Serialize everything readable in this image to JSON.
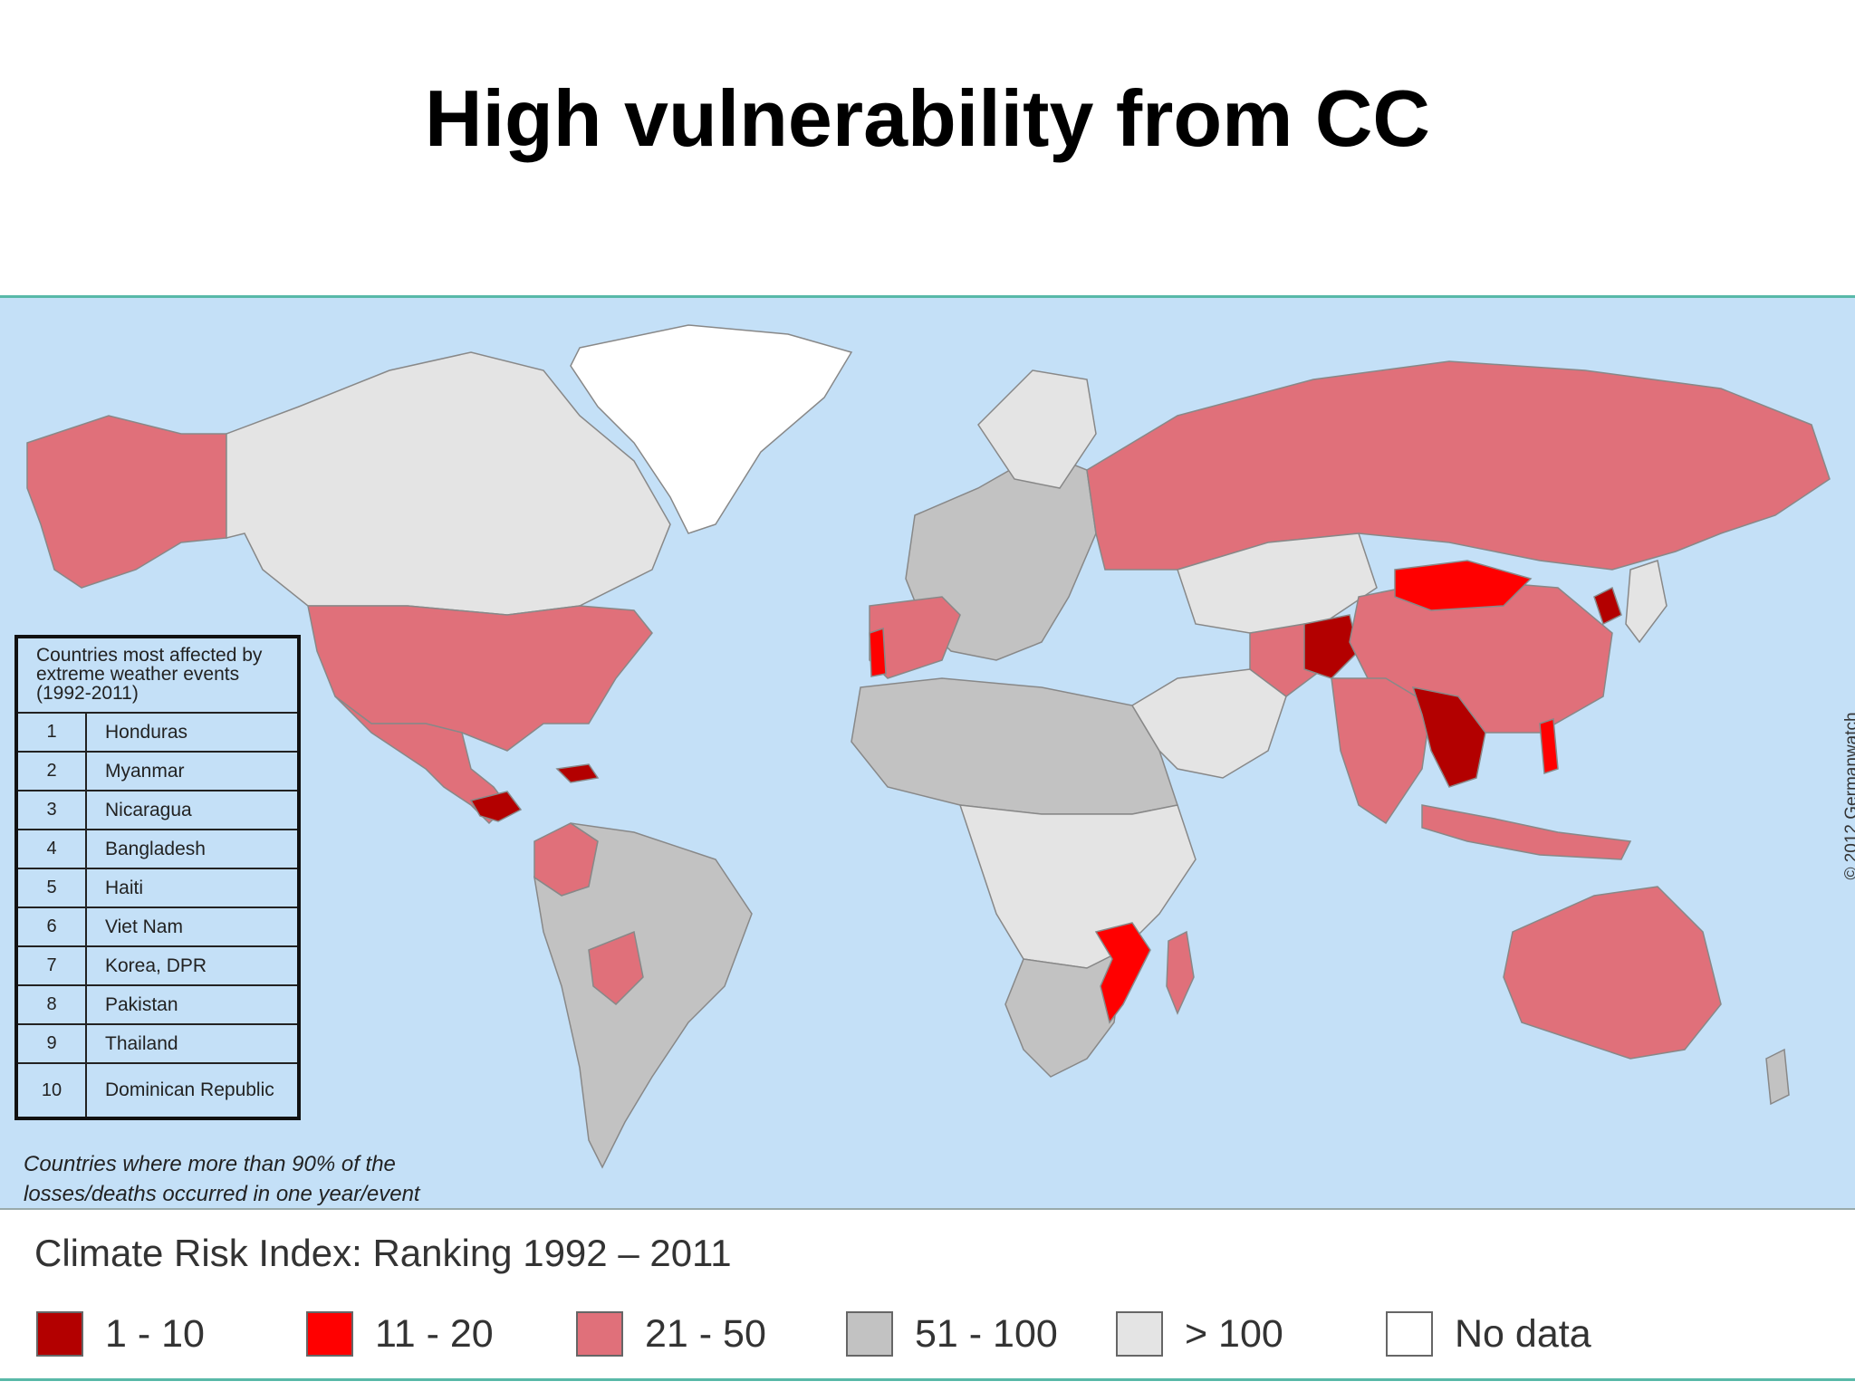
{
  "title": "High vulnerability from CC",
  "copyright": "© 2012 Germanwatch",
  "ranking_box": {
    "header": "Countries most affected by extreme weather events (1992-2011)",
    "rows": [
      {
        "rank": "1",
        "country": "Honduras"
      },
      {
        "rank": "2",
        "country": "Myanmar"
      },
      {
        "rank": "3",
        "country": "Nicaragua"
      },
      {
        "rank": "4",
        "country": "Bangladesh"
      },
      {
        "rank": "5",
        "country": "Haiti"
      },
      {
        "rank": "6",
        "country": "Viet Nam"
      },
      {
        "rank": "7",
        "country": "Korea, DPR"
      },
      {
        "rank": "8",
        "country": "Pakistan"
      },
      {
        "rank": "9",
        "country": "Thailand"
      },
      {
        "rank": "10",
        "country": "Dominican Republic"
      }
    ]
  },
  "note": "Countries where more than 90% of the losses/deaths occurred in one year/event",
  "legend": {
    "title": "Climate Risk Index: Ranking 1992 – 2011",
    "items": [
      {
        "label": "1 - 10",
        "color": "#b30000"
      },
      {
        "label": "11 - 20",
        "color": "#ff0000"
      },
      {
        "label": "21 - 50",
        "color": "#e0707a"
      },
      {
        "label": "51 - 100",
        "color": "#c2c2c2"
      },
      {
        "label": "> 100",
        "color": "#e4e4e4"
      },
      {
        "label": "No data",
        "color": "#ffffff"
      }
    ]
  },
  "colors": {
    "ocean": "#c4e0f7",
    "rank_1_10": "#b30000",
    "rank_11_20": "#ff0000",
    "rank_21_50": "#e0707a",
    "rank_51_100": "#c2c2c2",
    "rank_over_100": "#e4e4e4",
    "no_data": "#ffffff"
  }
}
